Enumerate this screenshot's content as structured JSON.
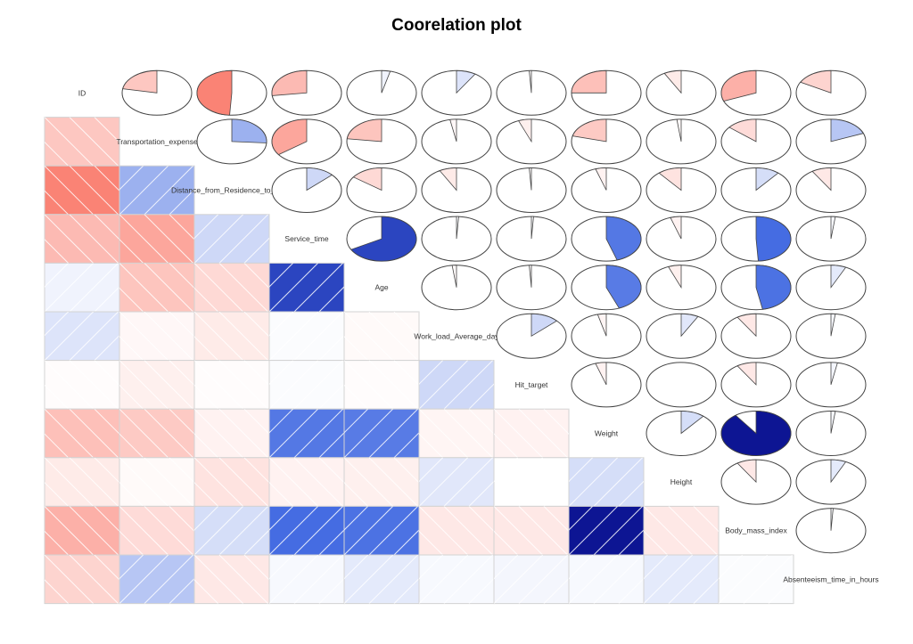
{
  "chart_data": {
    "type": "heatmap",
    "title": "Coorelation plot",
    "lower_panel": "shade",
    "upper_panel": "pie",
    "variables": [
      "ID",
      "Transportation_expense",
      "Distance_from_Residence_to_Work",
      "Service_time",
      "Age",
      "Work_load_Average_day",
      "Hit_target",
      "Weight",
      "Height",
      "Body_mass_index",
      "Absenteeism_time_in_hours"
    ],
    "colors": {
      "negative": "#ff0000",
      "zero": "#ffffff",
      "positive": "#000080",
      "cell_border": "#d3d3d3"
    },
    "matrix": [
      [
        1.0,
        -0.22,
        -0.49,
        -0.27,
        0.04,
        0.09,
        -0.01,
        -0.25,
        -0.08,
        -0.31,
        -0.17
      ],
      [
        -0.22,
        1.0,
        0.26,
        -0.35,
        -0.23,
        -0.03,
        -0.06,
        -0.21,
        -0.02,
        -0.14,
        0.19
      ],
      [
        -0.49,
        0.26,
        1.0,
        0.13,
        -0.15,
        -0.08,
        -0.01,
        -0.05,
        -0.11,
        0.11,
        -0.09
      ],
      [
        -0.27,
        -0.35,
        0.13,
        1.0,
        0.67,
        0.01,
        0.01,
        0.45,
        -0.05,
        0.49,
        0.02
      ],
      [
        0.04,
        -0.23,
        -0.15,
        0.67,
        1.0,
        -0.02,
        -0.01,
        0.44,
        -0.06,
        0.47,
        0.07
      ],
      [
        0.09,
        -0.03,
        -0.08,
        0.01,
        -0.02,
        1.0,
        0.13,
        -0.04,
        0.08,
        -0.09,
        0.02
      ],
      [
        -0.01,
        -0.06,
        -0.01,
        0.01,
        -0.01,
        0.13,
        1.0,
        -0.05,
        0.0,
        -0.09,
        0.03
      ],
      [
        -0.25,
        -0.21,
        -0.05,
        0.45,
        0.44,
        -0.04,
        -0.05,
        1.0,
        0.11,
        0.9,
        0.02
      ],
      [
        -0.08,
        -0.02,
        -0.11,
        -0.05,
        -0.06,
        0.08,
        0.0,
        0.11,
        1.0,
        -0.09,
        0.07
      ],
      [
        -0.31,
        -0.14,
        0.11,
        0.49,
        0.47,
        -0.09,
        -0.09,
        0.9,
        -0.09,
        1.0,
        0.01
      ],
      [
        -0.17,
        0.19,
        -0.09,
        0.02,
        0.07,
        0.02,
        0.03,
        0.02,
        0.07,
        0.01,
        1.0
      ]
    ]
  }
}
